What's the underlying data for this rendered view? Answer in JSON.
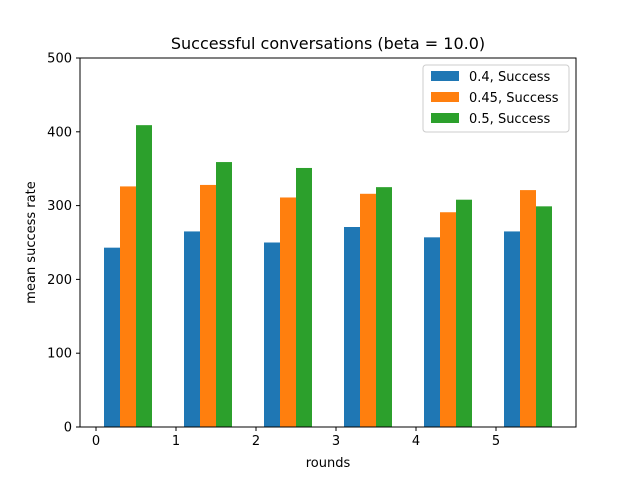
{
  "chart_data": {
    "type": "bar",
    "title": "Successful conversations (beta = 10.0)",
    "xlabel": "rounds",
    "ylabel": "mean success rate",
    "x": [
      0,
      1,
      2,
      3,
      4,
      5
    ],
    "xticks": [
      "0",
      "1",
      "2",
      "3",
      "4",
      "5"
    ],
    "yticks": [
      "0",
      "100",
      "200",
      "300",
      "400",
      "500"
    ],
    "xlim": [
      -0.2,
      6.0
    ],
    "ylim": [
      0,
      500
    ],
    "bar_width": 0.2,
    "legend_position": "upper-right",
    "grid": false,
    "series": [
      {
        "name": "0.4, Success",
        "color": "#1f77b4",
        "offset": 0.2,
        "values": [
          243,
          265,
          250,
          271,
          257,
          265
        ]
      },
      {
        "name": "0.45, Success",
        "color": "#ff7f0e",
        "offset": 0.4,
        "values": [
          326,
          328,
          311,
          316,
          291,
          321
        ]
      },
      {
        "name": "0.5, Success",
        "color": "#2ca02c",
        "offset": 0.6,
        "values": [
          409,
          359,
          351,
          325,
          308,
          299
        ]
      }
    ]
  }
}
